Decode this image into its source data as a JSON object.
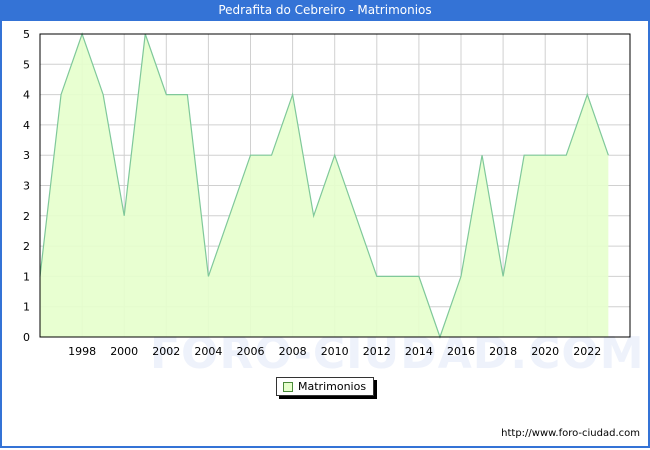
{
  "header": {
    "title": "Pedrafita do Cebreiro - Matrimonios"
  },
  "legend": {
    "label": "Matrimonios"
  },
  "footer": {
    "url": "http://www.foro-ciudad.com"
  },
  "watermark": "FORO-CIUDAD.COM",
  "colors": {
    "frame": "#3473d6",
    "fill": "#e6ffcc",
    "line": "#7fc89a",
    "grid": "#d0d0d0"
  },
  "chart_data": {
    "type": "area",
    "title": "Pedrafita do Cebreiro - Matrimonios",
    "xlabel": "",
    "ylabel": "",
    "x": [
      1996,
      1997,
      1998,
      1999,
      2000,
      2001,
      2002,
      2003,
      2004,
      2005,
      2006,
      2007,
      2008,
      2009,
      2010,
      2011,
      2012,
      2013,
      2014,
      2015,
      2016,
      2017,
      2018,
      2019,
      2020,
      2021,
      2022,
      2023
    ],
    "series": [
      {
        "name": "Matrimonios",
        "values": [
          1,
          4,
          5,
          4,
          2,
          5,
          4,
          4,
          1,
          2,
          3,
          3,
          4,
          2,
          3,
          2,
          1,
          1,
          1,
          0,
          1,
          3,
          1,
          3,
          3,
          3,
          4,
          3
        ]
      }
    ],
    "x_tick_labels": [
      "1998",
      "2000",
      "2002",
      "2004",
      "2006",
      "2008",
      "2010",
      "2012",
      "2014",
      "2016",
      "2018",
      "2020",
      "2022"
    ],
    "y_tick_labels": [
      "0",
      "1",
      "1",
      "2",
      "2",
      "3",
      "3",
      "4",
      "4",
      "5",
      "5"
    ],
    "ylim": [
      0,
      5
    ],
    "grid": true,
    "legend_position": "bottom-center"
  }
}
